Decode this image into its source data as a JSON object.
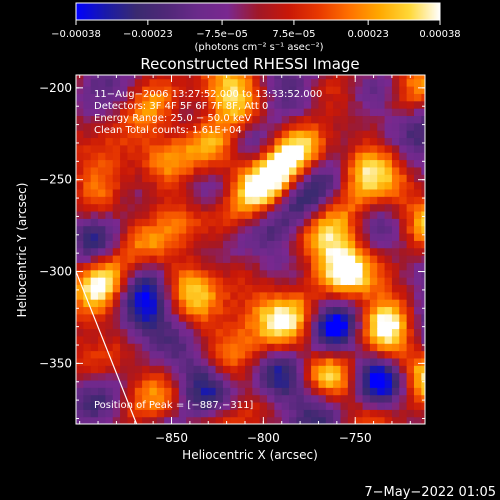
{
  "chart_data": {
    "type": "heatmap",
    "title": "Reconstructed RHESSI Image",
    "xlabel": "Heliocentric X (arcsec)",
    "ylabel": "Heliocentric Y (arcsec)",
    "xlim": [
      -902,
      -712
    ],
    "ylim": [
      -383,
      -193
    ],
    "xticks": [
      -850,
      -800,
      -750
    ],
    "xtick_labels": [
      "−850",
      "−800",
      "−750"
    ],
    "yticks": [
      -200,
      -250,
      -300,
      -350
    ],
    "ytick_labels": [
      "−200",
      "−250",
      "−300",
      "−350"
    ],
    "colorbar": {
      "vmin": -0.00038,
      "vmax": 0.00038,
      "ticks": [
        -0.00038,
        -0.00023,
        -7.5e-05,
        7.5e-05,
        0.00023,
        0.00038
      ],
      "tick_labels": [
        "−0.00038",
        "−0.00023",
        "−7.5e−05",
        "7.5e−05",
        "0.00023",
        "0.00038"
      ],
      "label": "(photons cm⁻² s⁻¹ asec⁻²)",
      "colormap": [
        "#0000ff",
        "#1a1aa8",
        "#3a2a70",
        "#502878",
        "#6a2a8a",
        "#7a2890",
        "#a01828",
        "#c81808",
        "#e83800",
        "#ff7000",
        "#ffa800",
        "#ffd838",
        "#ffffff"
      ]
    },
    "annotations": [
      "11−Aug−2006 13:27:52.000 to 13:33:52.000",
      "Detectors: 3F 4F 5F 6F 7F 8F, Att 0",
      "Energy Range: 25.0 − 50.0 keV",
      "Clean     Total counts: 1.61E+04"
    ],
    "peak_label": "Position of Peak = [−887,−311]",
    "peak": [
      -887,
      -311
    ],
    "limb_line": [
      [
        -902,
        -300
      ],
      [
        -869,
        -383
      ]
    ],
    "bright_sources": [
      {
        "x": -885,
        "y": -300,
        "amp": 0.00034
      },
      {
        "x": -855,
        "y": -238,
        "amp": 0.00028
      },
      {
        "x": -843,
        "y": -305,
        "amp": 0.0002
      },
      {
        "x": -818,
        "y": -235,
        "amp": 0.00026
      },
      {
        "x": -818,
        "y": -205,
        "amp": 0.0002
      },
      {
        "x": -795,
        "y": -245,
        "amp": 0.00024
      },
      {
        "x": -748,
        "y": -242,
        "amp": 0.00034
      },
      {
        "x": -755,
        "y": -300,
        "amp": 0.00034
      },
      {
        "x": -805,
        "y": -318,
        "amp": 0.00022
      },
      {
        "x": -820,
        "y": -345,
        "amp": 0.00016
      },
      {
        "x": -778,
        "y": -325,
        "amp": 0.00016
      },
      {
        "x": -725,
        "y": -350,
        "amp": 0.00018
      },
      {
        "x": -845,
        "y": -272,
        "amp": 0.00018
      },
      {
        "x": -865,
        "y": -210,
        "amp": 0.00016
      },
      {
        "x": -730,
        "y": -275,
        "amp": 0.0002
      }
    ],
    "negative_sources": [
      {
        "x": -862,
        "y": -300,
        "amp": -0.00022
      },
      {
        "x": -865,
        "y": -328,
        "amp": -0.00018
      },
      {
        "x": -765,
        "y": -368,
        "amp": -0.0002
      },
      {
        "x": -835,
        "y": -360,
        "amp": -0.00016
      },
      {
        "x": -732,
        "y": -218,
        "amp": -0.00014
      },
      {
        "x": -790,
        "y": -355,
        "amp": -0.00014
      }
    ]
  },
  "footer": {
    "date_stamp": "7−May−2022 01:05"
  }
}
